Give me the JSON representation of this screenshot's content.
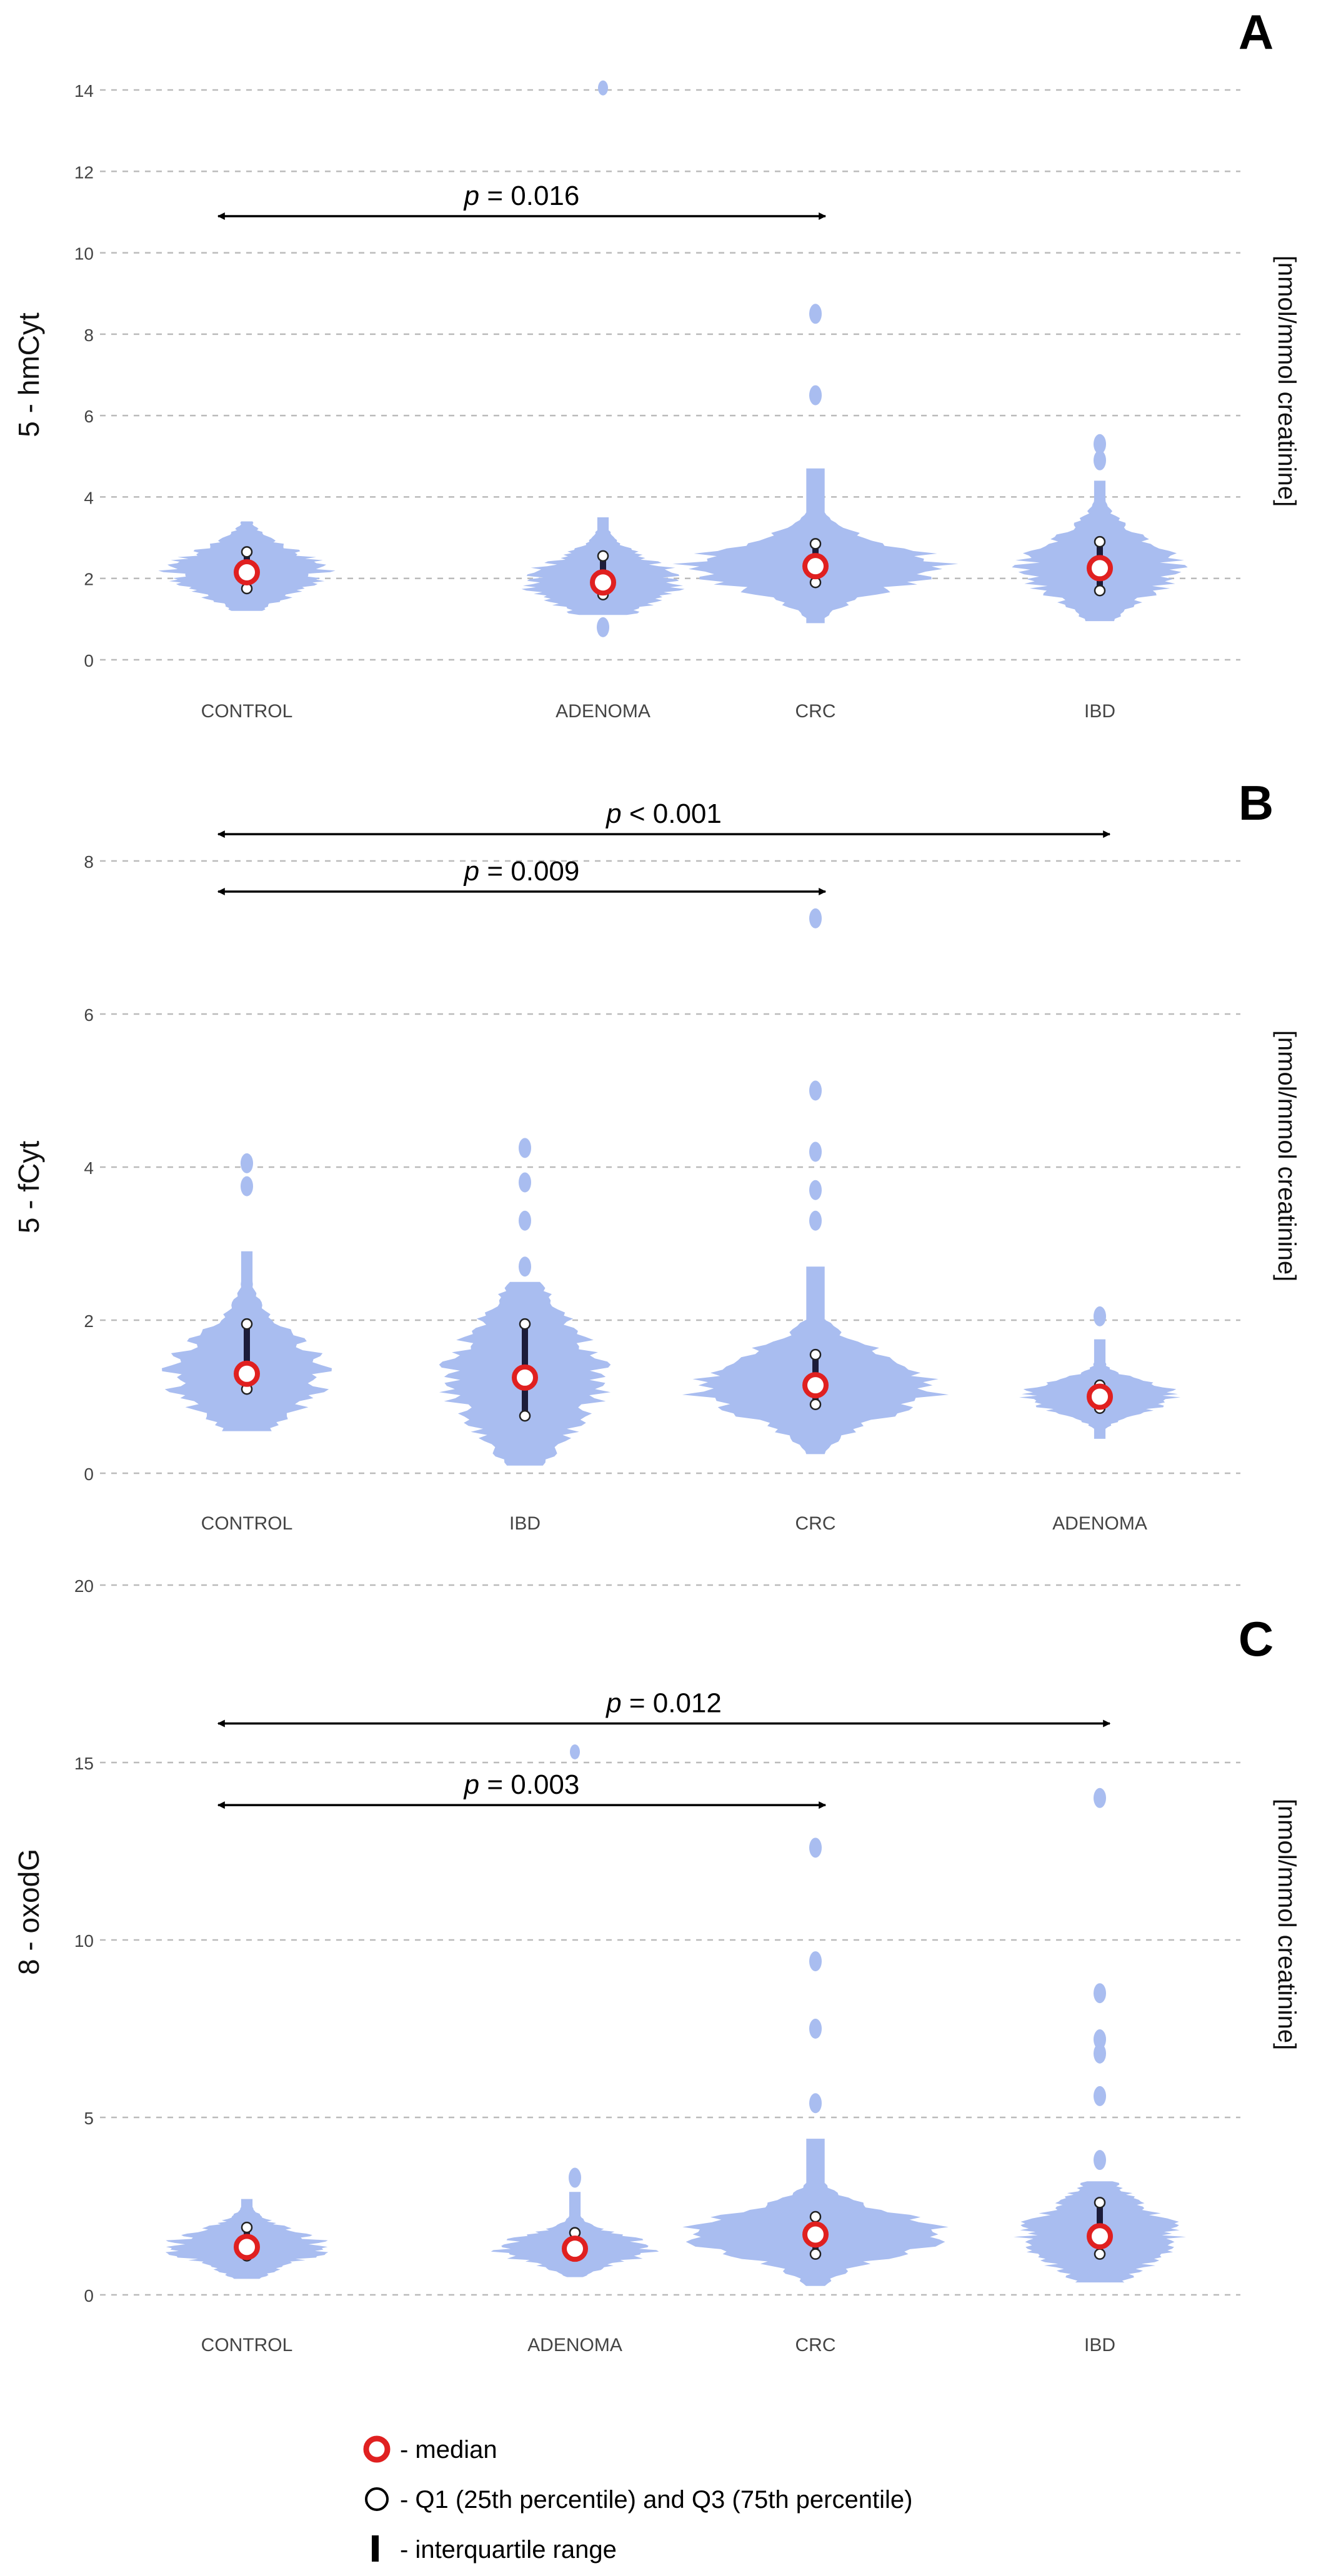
{
  "chart_data": [
    {
      "type": "violin",
      "panel_letter": "A",
      "ylabel": "5 - hmCyt",
      "unit_label": "[nmol/mmol creatinine]",
      "ylim": [
        0,
        14
      ],
      "yticks": [
        0,
        2,
        4,
        6,
        8,
        10,
        12,
        14
      ],
      "categories": [
        "CONTROL",
        "ADENOMA",
        "CRC",
        "IBD"
      ],
      "groups": [
        {
          "name": "CONTROL",
          "median": 2.15,
          "q1": 1.75,
          "q3": 2.65,
          "min": 1.2,
          "max": 3.4,
          "outliers": []
        },
        {
          "name": "ADENOMA",
          "median": 1.9,
          "q1": 1.6,
          "q3": 2.55,
          "min": 1.1,
          "max": 3.5,
          "outliers": [
            0.8
          ]
        },
        {
          "name": "CRC",
          "median": 2.3,
          "q1": 1.9,
          "q3": 2.85,
          "min": 0.9,
          "max": 4.7,
          "outliers": [
            6.5,
            8.5
          ]
        },
        {
          "name": "IBD",
          "median": 2.25,
          "q1": 1.7,
          "q3": 2.9,
          "min": 0.95,
          "max": 4.4,
          "outliers": [
            4.9,
            5.3
          ]
        }
      ],
      "extra_points": [
        {
          "category": "ADENOMA",
          "value": 14.05
        }
      ],
      "annotations": [
        {
          "p_symbol": "p",
          "p_text": " = 0.016",
          "from": "CONTROL",
          "to": "CRC",
          "y": 10.9
        }
      ]
    },
    {
      "type": "violin",
      "panel_letter": "B",
      "ylabel": "5 - fCyt",
      "unit_label": "[nmol/mmol creatinine]",
      "ylim": [
        0,
        8
      ],
      "yticks": [
        0,
        2,
        4,
        6,
        8
      ],
      "categories": [
        "CONTROL",
        "IBD",
        "CRC",
        "ADENOMA"
      ],
      "groups": [
        {
          "name": "CONTROL",
          "median": 1.3,
          "q1": 1.1,
          "q3": 1.95,
          "min": 0.55,
          "max": 2.9,
          "outliers": [
            3.75,
            4.05
          ]
        },
        {
          "name": "IBD",
          "median": 1.25,
          "q1": 0.75,
          "q3": 1.95,
          "min": 0.1,
          "max": 2.5,
          "outliers": [
            2.7,
            3.3,
            3.8,
            4.25
          ]
        },
        {
          "name": "CRC",
          "median": 1.15,
          "q1": 0.9,
          "q3": 1.55,
          "min": 0.25,
          "max": 2.7,
          "outliers": [
            3.3,
            3.7,
            4.2,
            5.0,
            7.25
          ]
        },
        {
          "name": "ADENOMA",
          "median": 1.0,
          "q1": 0.85,
          "q3": 1.15,
          "min": 0.45,
          "max": 1.75,
          "outliers": [
            2.05
          ]
        }
      ],
      "extra_points": [],
      "annotations": [
        {
          "p_symbol": "p",
          "p_text": " < 0.001",
          "from": "CONTROL",
          "to": "ADENOMA",
          "y": 8.35
        },
        {
          "p_symbol": "p",
          "p_text": " = 0.009",
          "from": "CONTROL",
          "to": "CRC",
          "y": 7.6
        }
      ]
    },
    {
      "type": "violin",
      "panel_letter": "C",
      "ylabel": "8 - oxodG",
      "unit_label": "[nmol/mmol creatinine]",
      "ylim": [
        0,
        20
      ],
      "yticks": [
        0,
        5,
        10,
        15,
        20
      ],
      "categories": [
        "CONTROL",
        "ADENOMA",
        "CRC",
        "IBD"
      ],
      "groups": [
        {
          "name": "CONTROL",
          "median": 1.35,
          "q1": 1.1,
          "q3": 1.9,
          "min": 0.45,
          "max": 2.7,
          "outliers": []
        },
        {
          "name": "ADENOMA",
          "median": 1.3,
          "q1": 1.1,
          "q3": 1.75,
          "min": 0.5,
          "max": 2.9,
          "outliers": [
            3.3
          ]
        },
        {
          "name": "CRC",
          "median": 1.7,
          "q1": 1.15,
          "q3": 2.2,
          "min": 0.25,
          "max": 4.4,
          "outliers": [
            5.4,
            7.5,
            9.4,
            12.6
          ]
        },
        {
          "name": "IBD",
          "median": 1.65,
          "q1": 1.15,
          "q3": 2.6,
          "min": 0.35,
          "max": 3.2,
          "outliers": [
            3.8,
            5.6,
            6.8,
            7.2,
            8.5,
            14.0
          ]
        }
      ],
      "extra_points": [
        {
          "category": "ADENOMA",
          "value": 15.3
        }
      ],
      "annotations": [
        {
          "p_symbol": "p",
          "p_text": " = 0.012",
          "from": "CONTROL",
          "to": "IBD",
          "y": 16.1
        },
        {
          "p_symbol": "p",
          "p_text": " = 0.003",
          "from": "CONTROL",
          "to": "CRC",
          "y": 13.8
        }
      ]
    }
  ],
  "legend": {
    "median": "- median",
    "quartiles": "- Q1 (25th percentile) and Q3 (75th percentile)",
    "iqr": "- interquartile range"
  },
  "colors": {
    "violin": "#a9bdf0",
    "median": "#e02020",
    "iqr": "#1c1c3a",
    "grid": "#bbbbbb",
    "arrow": "#000000"
  }
}
